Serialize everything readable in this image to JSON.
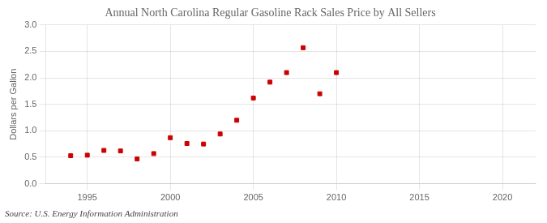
{
  "chart_data": {
    "type": "scatter",
    "title": "Annual North Carolina Regular Gasoline Rack Sales Price by All Sellers",
    "y_label": "Dollars per Gallon",
    "annotation": "Source: U.S. Energy Information Administration",
    "x": [
      1994,
      1995,
      1996,
      1997,
      1998,
      1999,
      2000,
      2001,
      2002,
      2003,
      2004,
      2005,
      2006,
      2007,
      2008,
      2009,
      2010
    ],
    "values": [
      0.53,
      0.54,
      0.63,
      0.62,
      0.47,
      0.57,
      0.87,
      0.76,
      0.75,
      0.94,
      1.2,
      1.62,
      1.92,
      2.1,
      2.57,
      1.7,
      2.1
    ],
    "color": "#cc0000",
    "marker": "square",
    "xlim": [
      1992.5,
      2022
    ],
    "xticks": [
      1995,
      2000,
      2005,
      2010,
      2015,
      2020
    ],
    "ylim": [
      0.0,
      3.0
    ],
    "yticks": [
      {
        "value": 0.0,
        "label": "0.0"
      },
      0.5,
      {
        "value": 1.0,
        "label": "1.0"
      },
      1.5,
      {
        "value": 2.0,
        "label": "2.0"
      },
      2.5,
      {
        "value": 3.0,
        "label": "3.0"
      }
    ],
    "grid": true
  }
}
